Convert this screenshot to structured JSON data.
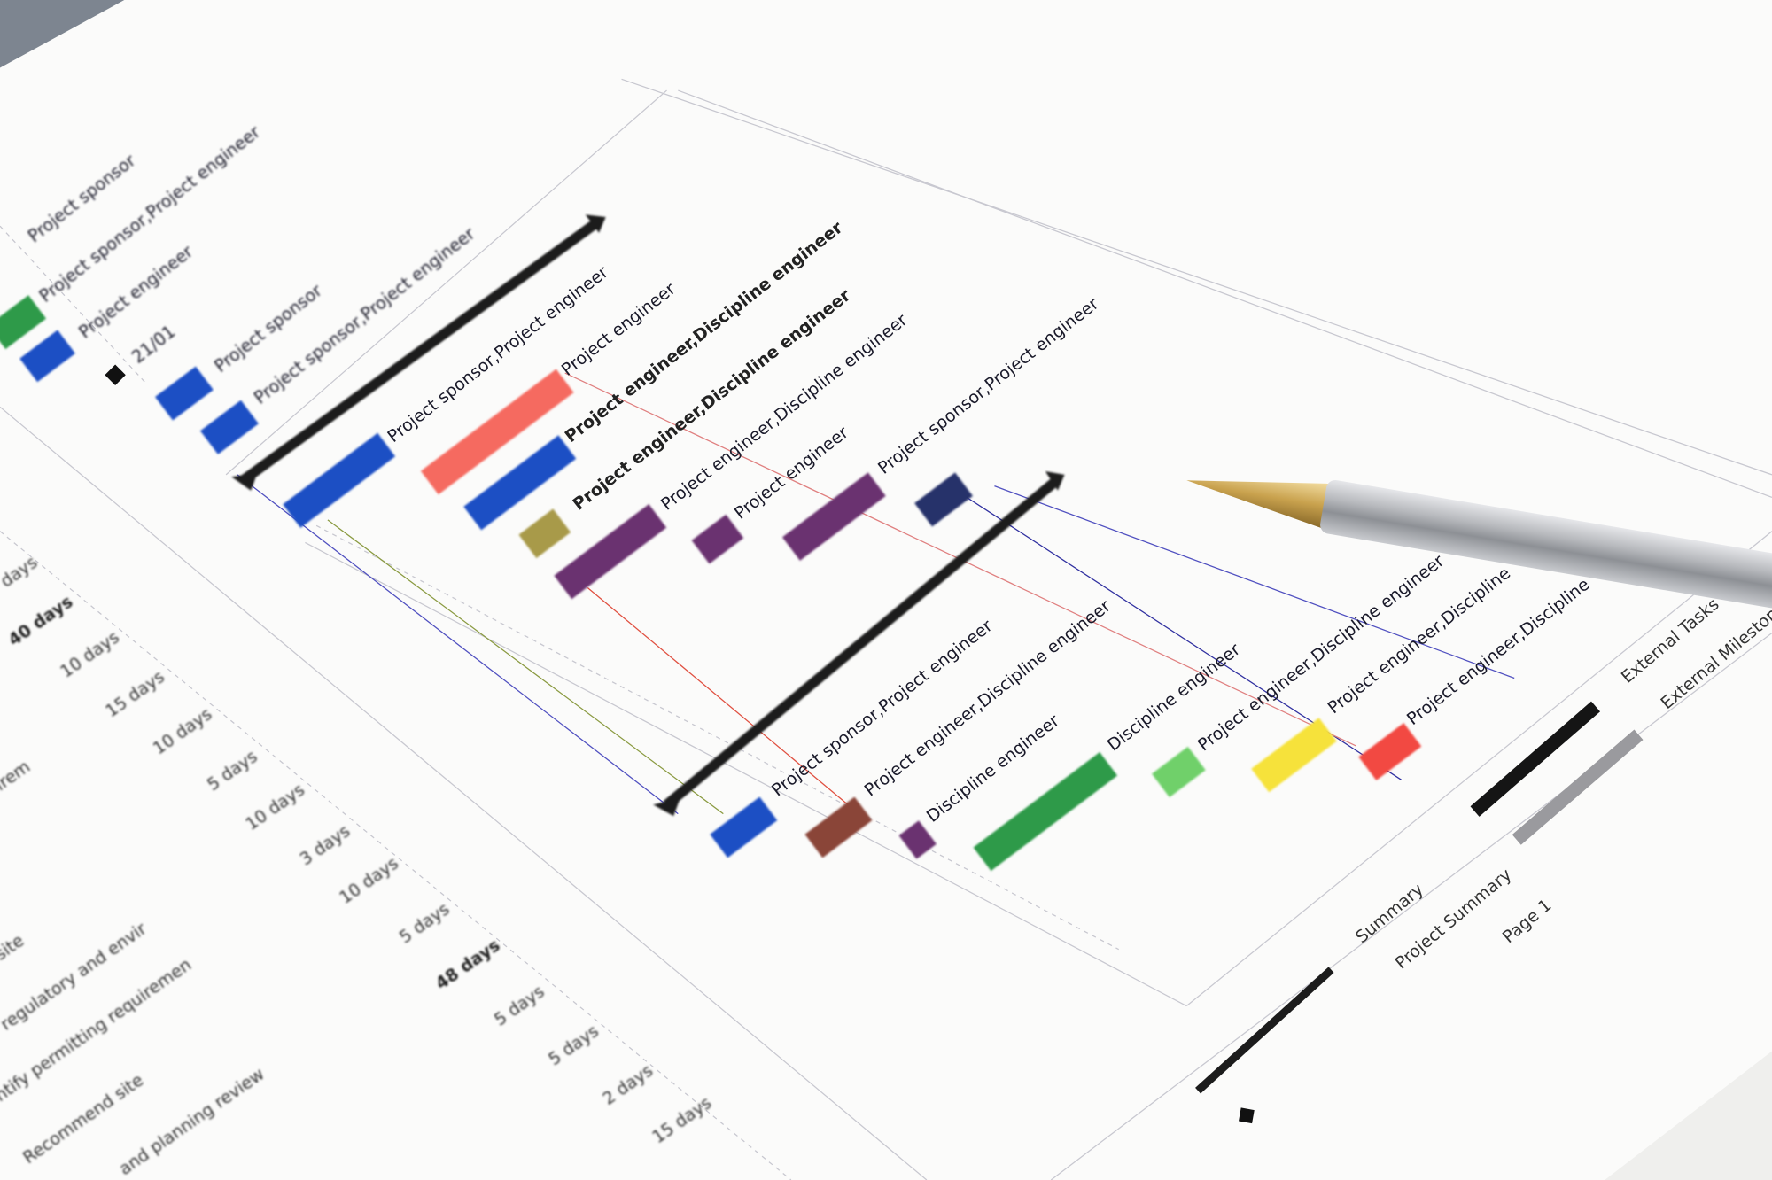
{
  "colors": {
    "paper": "#fbfbfa",
    "summary": "#1c1c1c",
    "blue": "#1f4fc4",
    "salmon": "#f56a60",
    "olive": "#a89a48",
    "purple": "#6a3370",
    "navy": "#27336a",
    "brown": "#8a4438",
    "green": "#2f9a4a",
    "light_green": "#6fd06a",
    "yellow": "#f6e23a",
    "red": "#f24a42",
    "grey_summary": "#9a9a9e"
  },
  "gantt_labels": [
    "Project sponsor",
    "Project sponsor,Project engineer",
    "Project engineer",
    "21/01",
    "Project sponsor",
    "Project sponsor,Project engineer",
    "Project sponsor,Project engineer",
    "Project engineer",
    "Project engineer,Discipline engineer",
    "Project engineer,Discipline engineer",
    "Project engineer,Discipline engineer",
    "Project engineer",
    "Project sponsor,Project engineer",
    "Project sponsor,Project engineer",
    "Project engineer,Discipline engineer",
    "Discipline engineer",
    "Discipline engineer",
    "Project engineer,Discipline engineer",
    "Project engineer,Discipline",
    "Project engineer,Discipline"
  ],
  "table": {
    "durations": [
      "days",
      "40 days",
      "10 days",
      "15 days",
      "10 days",
      "5 days",
      "10 days",
      "3 days",
      "10 days",
      "5 days",
      "48 days",
      "5 days",
      "5 days",
      "2 days",
      "15 days"
    ],
    "task_names": [
      "irem",
      "site",
      "regulatory and envir",
      "ntify permitting requiremen",
      "Recommend site",
      "and planning review"
    ]
  },
  "legend": {
    "summary": "Summary",
    "project_summary": "Project Summary",
    "page": "Page 1",
    "external_tasks": "External Tasks",
    "external_milestone": "External Milestone"
  }
}
